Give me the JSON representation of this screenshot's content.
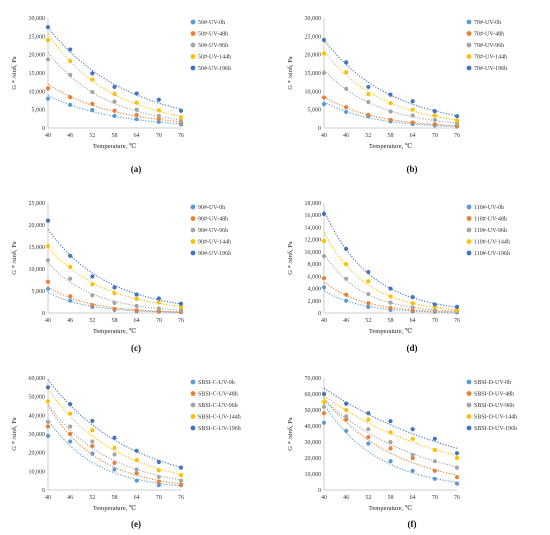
{
  "chart_data": [
    {
      "type": "scatter",
      "label": "(a)",
      "xlabel": "Temperature, ℃",
      "ylabel": "G * /sinδ, Pa",
      "x": [
        40,
        46,
        52,
        58,
        64,
        70,
        76
      ],
      "xlim": [
        40,
        76
      ],
      "ylim": [
        0,
        30000
      ],
      "yticks": [
        0,
        5000,
        10000,
        15000,
        20000,
        25000,
        30000
      ],
      "ytick_labels": [
        "0",
        "5,000",
        "10,000",
        "15,000",
        "20,000",
        "25,000",
        "30,000"
      ],
      "trendlines": true,
      "legend": "right",
      "series": [
        {
          "name": "50#-UV-0h",
          "values": [
            8000,
            6300,
            4900,
            3300,
            2400,
            1700,
            1000
          ]
        },
        {
          "name": "50#-UV-48h",
          "values": [
            10800,
            8400,
            6600,
            4700,
            3600,
            2500,
            1400
          ]
        },
        {
          "name": "50#-UV-96h",
          "values": [
            18700,
            14500,
            9800,
            7200,
            5000,
            3300,
            1900
          ]
        },
        {
          "name": "50#-UV-144h",
          "values": [
            24000,
            18300,
            13200,
            9300,
            6900,
            4800,
            2900
          ]
        },
        {
          "name": "50#-UV-196h",
          "values": [
            27500,
            21400,
            14900,
            11200,
            9400,
            7700,
            4700
          ]
        }
      ]
    },
    {
      "type": "scatter",
      "label": "(b)",
      "xlabel": "Temperature, ℃",
      "ylabel": "G * /sinδ, Pa",
      "x": [
        40,
        46,
        52,
        58,
        64,
        70,
        76
      ],
      "xlim": [
        40,
        76
      ],
      "ylim": [
        0,
        30000
      ],
      "yticks": [
        0,
        5000,
        10000,
        15000,
        20000,
        25000,
        30000
      ],
      "ytick_labels": [
        "0",
        "5,000",
        "10,000",
        "15,000",
        "20,000",
        "25,000",
        "30,000"
      ],
      "trendlines": true,
      "legend": "right",
      "series": [
        {
          "name": "70#-UV-0h",
          "values": [
            6500,
            4400,
            3200,
            1800,
            1100,
            700,
            400
          ]
        },
        {
          "name": "70#-UV-48h",
          "values": [
            8300,
            5700,
            3600,
            2200,
            1500,
            1000,
            600
          ]
        },
        {
          "name": "70#-UV-96h",
          "values": [
            15000,
            10700,
            7100,
            4500,
            3400,
            2200,
            1200
          ]
        },
        {
          "name": "70#-UV-144h",
          "values": [
            20300,
            15200,
            9200,
            6800,
            5000,
            3400,
            2000
          ]
        },
        {
          "name": "70#-UV-196h",
          "values": [
            24000,
            17900,
            11200,
            9100,
            7300,
            4600,
            3200
          ]
        }
      ]
    },
    {
      "type": "scatter",
      "label": "(c)",
      "xlabel": "Temperature, ℃",
      "ylabel": "G * /sinδ, Pa",
      "x": [
        40,
        46,
        52,
        58,
        64,
        70,
        76
      ],
      "xlim": [
        40,
        76
      ],
      "ylim": [
        0,
        25000
      ],
      "yticks": [
        0,
        5000,
        10000,
        15000,
        20000,
        25000
      ],
      "ytick_labels": [
        "0",
        "5,000",
        "10,000",
        "15,000",
        "20,000",
        "25,000"
      ],
      "trendlines": true,
      "legend": "right",
      "series": [
        {
          "name": "90#-UV-0h",
          "values": [
            5500,
            2800,
            1400,
            700,
            400,
            300,
            200
          ]
        },
        {
          "name": "90#-UV-48h",
          "values": [
            7100,
            3800,
            1800,
            900,
            600,
            400,
            300
          ]
        },
        {
          "name": "90#-UV-96h",
          "values": [
            12000,
            7800,
            4000,
            2300,
            1600,
            1000,
            700
          ]
        },
        {
          "name": "90#-UV-144h",
          "values": [
            15200,
            10500,
            6500,
            4500,
            3200,
            2400,
            1400
          ]
        },
        {
          "name": "90#-UV-196h",
          "values": [
            21000,
            13000,
            8300,
            5800,
            4200,
            3300,
            2100
          ]
        }
      ]
    },
    {
      "type": "scatter",
      "label": "(d)",
      "xlabel": "Temperature, ℃",
      "ylabel": "G * /sinδ, Pa",
      "x": [
        40,
        46,
        52,
        58,
        64,
        70,
        76
      ],
      "xlim": [
        40,
        76
      ],
      "ylim": [
        0,
        18000
      ],
      "yticks": [
        0,
        2000,
        4000,
        6000,
        8000,
        10000,
        12000,
        14000,
        16000,
        18000
      ],
      "ytick_labels": [
        "0",
        "2,000",
        "4,000",
        "6,000",
        "8,000",
        "10,000",
        "12,000",
        "14,000",
        "16,000",
        "18,000"
      ],
      "trendlines": true,
      "legend": "right",
      "series": [
        {
          "name": "110#-UV-0h",
          "values": [
            4200,
            2000,
            1000,
            500,
            300,
            200,
            100
          ]
        },
        {
          "name": "110#-UV-48h",
          "values": [
            5700,
            3000,
            1600,
            800,
            400,
            300,
            200
          ]
        },
        {
          "name": "110#-UV-96h",
          "values": [
            9300,
            5600,
            3100,
            1700,
            900,
            500,
            300
          ]
        },
        {
          "name": "110#-UV-144h",
          "values": [
            11800,
            8000,
            5200,
            2700,
            1600,
            1000,
            500
          ]
        },
        {
          "name": "110#-UV-196h",
          "values": [
            16200,
            10500,
            6700,
            4000,
            2600,
            1400,
            1000
          ]
        }
      ]
    },
    {
      "type": "scatter",
      "label": "(e)",
      "xlabel": "Temperature, ℃",
      "ylabel": "G * /sinδ, Pa",
      "x": [
        40,
        46,
        52,
        58,
        64,
        70,
        76
      ],
      "xlim": [
        40,
        76
      ],
      "ylim": [
        0,
        60000
      ],
      "yticks": [
        0,
        10000,
        20000,
        30000,
        40000,
        50000,
        60000
      ],
      "ytick_labels": [
        "0",
        "10,000",
        "20,000",
        "30,000",
        "40,000",
        "50,000",
        "60,000"
      ],
      "trendlines": true,
      "legend": "right",
      "series": [
        {
          "name": "SBSI-C-UV-0h",
          "values": [
            29000,
            26000,
            19500,
            11000,
            5000,
            2600,
            2600
          ]
        },
        {
          "name": "SBSI-C-UV-48h",
          "values": [
            34000,
            30000,
            23500,
            14500,
            9000,
            4500,
            2800
          ]
        },
        {
          "name": "SBSI-C-UV-96h",
          "values": [
            36500,
            34000,
            26000,
            19000,
            11000,
            7000,
            5000
          ]
        },
        {
          "name": "SBSI-C-UV-144h",
          "values": [
            47500,
            41000,
            32000,
            22500,
            16000,
            10500,
            8000
          ]
        },
        {
          "name": "SBSI-C-UV-196h",
          "values": [
            55000,
            46000,
            37000,
            28000,
            21000,
            15000,
            12000
          ]
        }
      ]
    },
    {
      "type": "scatter",
      "label": "(f)",
      "xlabel": "Temperature, ℃",
      "ylabel": "G * /sinδ, Pa",
      "x": [
        40,
        46,
        52,
        58,
        64,
        70,
        76
      ],
      "xlim": [
        40,
        76
      ],
      "ylim": [
        0,
        70000
      ],
      "yticks": [
        0,
        10000,
        20000,
        30000,
        40000,
        50000,
        60000,
        70000
      ],
      "ytick_labels": [
        "0",
        "10,000",
        "20,000",
        "30,000",
        "40,000",
        "50,000",
        "60,000",
        "70,000"
      ],
      "trendlines": true,
      "legend": "right",
      "series": [
        {
          "name": "SBSI-D-UV-0h",
          "values": [
            42000,
            37000,
            29000,
            18000,
            12000,
            7000,
            4000
          ]
        },
        {
          "name": "SBSI-D-UV-48h",
          "values": [
            48000,
            44000,
            33000,
            26000,
            20000,
            12000,
            8000
          ]
        },
        {
          "name": "SBSI-D-UV-96h",
          "values": [
            52000,
            46000,
            38000,
            30000,
            22000,
            18000,
            14000
          ]
        },
        {
          "name": "SBSI-D-UV-144h",
          "values": [
            55000,
            50000,
            44000,
            36000,
            32000,
            25000,
            20000
          ]
        },
        {
          "name": "SBSI-D-UV-196h",
          "values": [
            60000,
            54000,
            48000,
            43000,
            38000,
            32000,
            23000
          ]
        }
      ]
    }
  ],
  "series_colors": [
    "#5b9bd5",
    "#ed7d31",
    "#a5a5a5",
    "#ffc000",
    "#4472c4"
  ]
}
